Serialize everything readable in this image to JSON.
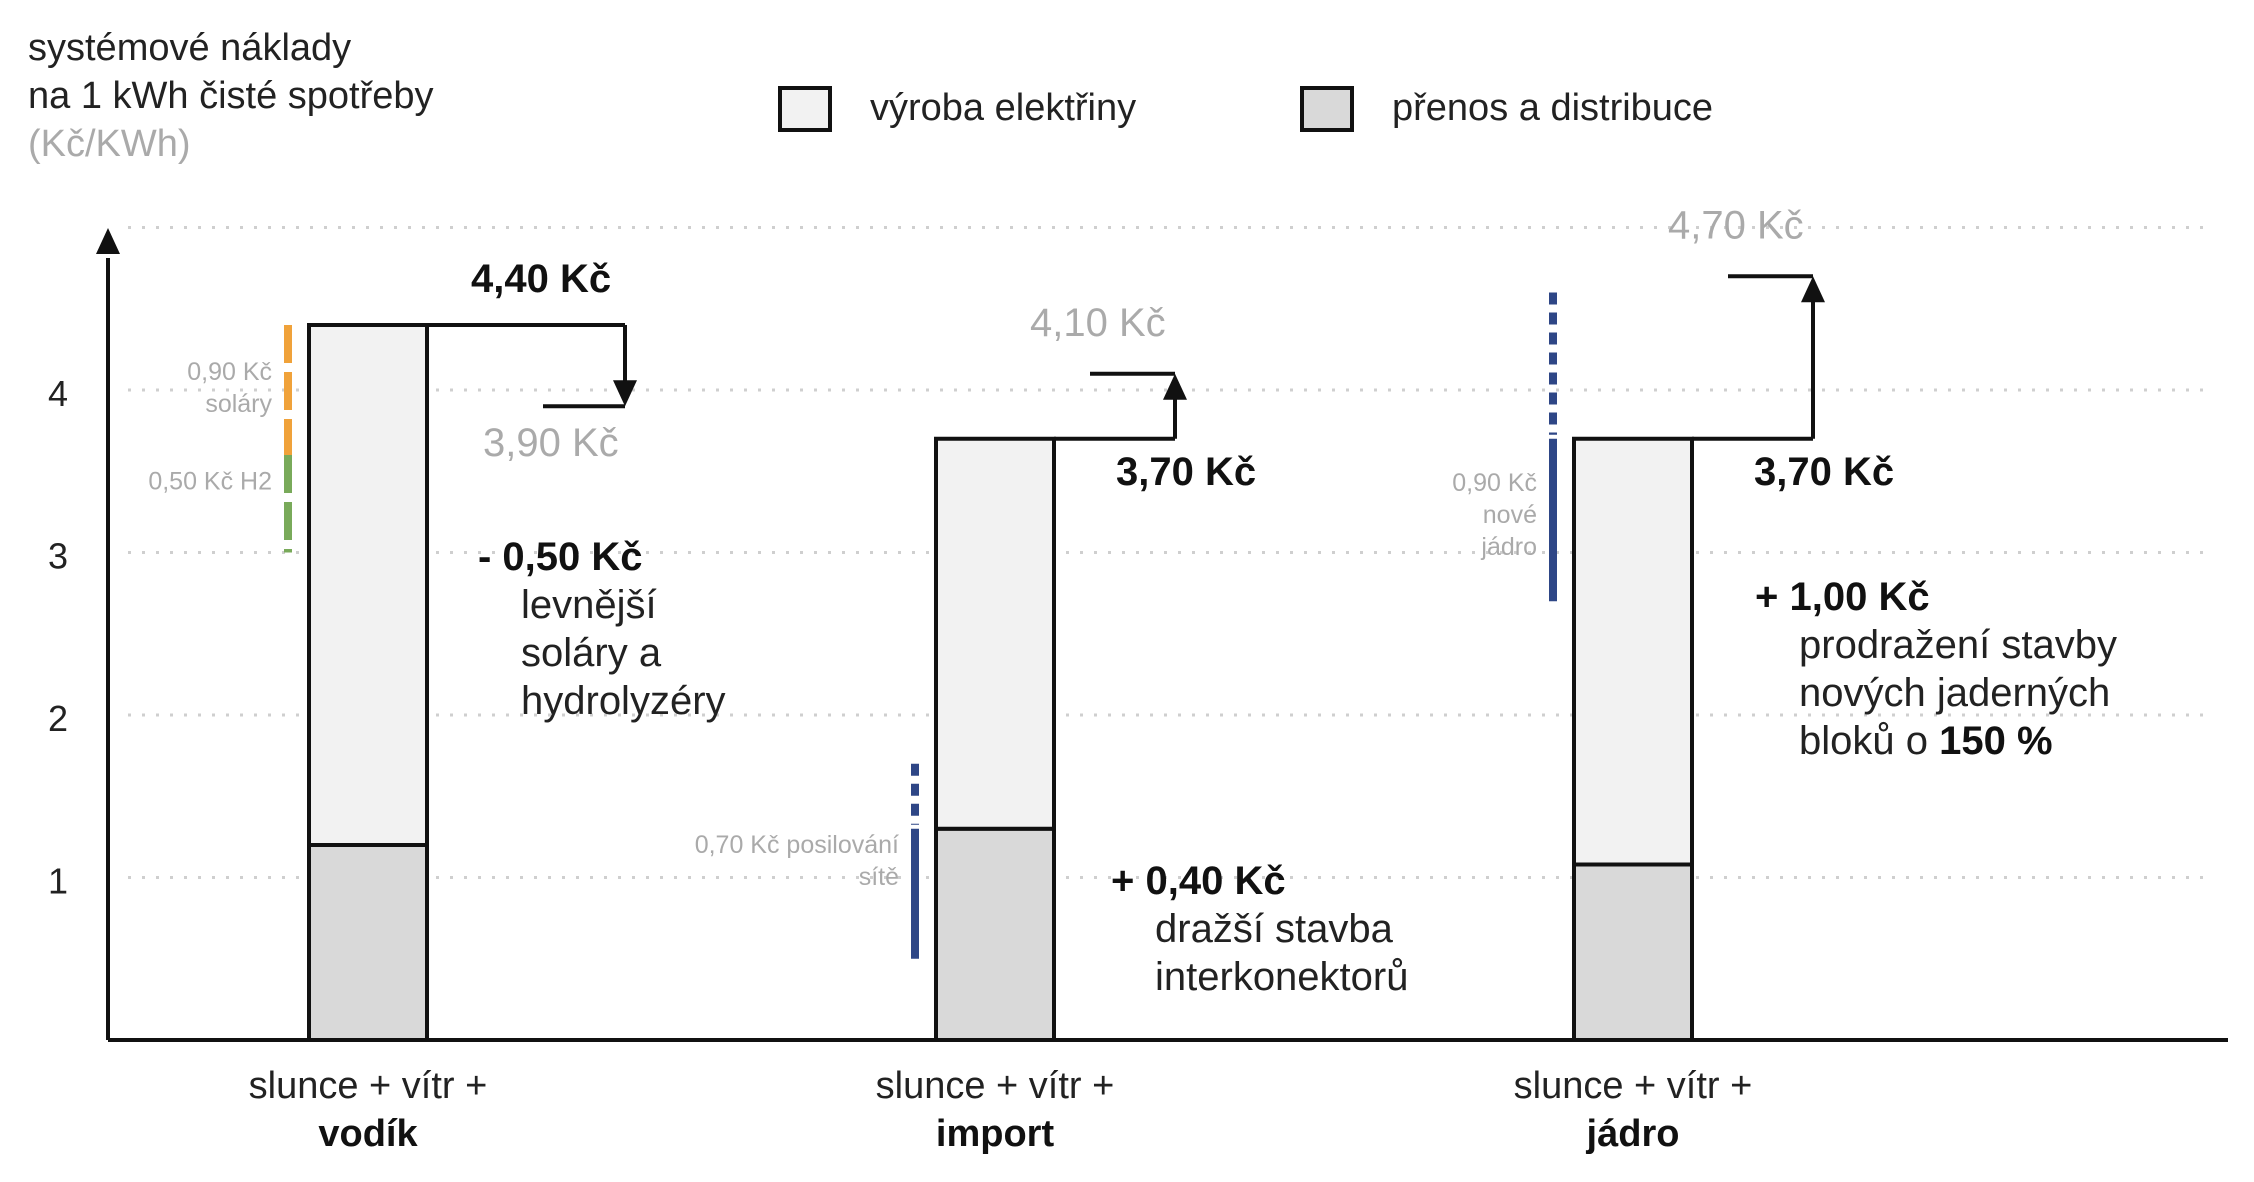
{
  "chart_data": {
    "type": "bar",
    "title_lines": [
      "systémové náklady",
      "na 1 kWh čisté spotřeby"
    ],
    "unit_label": "(Kč/KWh)",
    "ylim": [
      0,
      5
    ],
    "y_ticks": [
      {
        "value": 1,
        "label": "1"
      },
      {
        "value": 2,
        "label": "2"
      },
      {
        "value": 3,
        "label": "3"
      },
      {
        "value": 4,
        "label": "4"
      }
    ],
    "grid": true,
    "legend_position": "top",
    "legend": [
      {
        "name": "výroba elektřiny",
        "color": "#f2f2f2"
      },
      {
        "name": "přenos a distribuce",
        "color": "#d9d9d9"
      }
    ],
    "colors": {
      "orange": "#f0a23a",
      "green": "#79aa5a",
      "navy": "#2e4686",
      "muted": "#aaaaaa",
      "axis": "#111111"
    },
    "scenarios": [
      {
        "label_top": "slunce + vítr +",
        "label_bold": "vodík",
        "total": 4.4,
        "distribution": 1.2,
        "production": 3.2,
        "total_label": "4,40 Kč",
        "alt_value": 3.9,
        "alt_label": "3,90 Kč",
        "delta_label": "- 0,50 Kč",
        "delta_text": [
          "levnější",
          "soláry a",
          "hydrolyzéry"
        ],
        "components": [
          {
            "label_lines": [
              "0,90 Kč",
              "soláry"
            ],
            "from": 3.6,
            "to": 4.4,
            "color": "orange",
            "style": "dashed"
          },
          {
            "label_lines": [
              "0,50 Kč H2"
            ],
            "from": 3.0,
            "to": 3.6,
            "color": "green",
            "style": "dashed"
          }
        ]
      },
      {
        "label_top": "slunce + vítr +",
        "label_bold": "import",
        "total": 3.7,
        "distribution": 1.3,
        "production": 2.4,
        "total_label": "3,70 Kč",
        "alt_value": 4.1,
        "alt_label": "4,10 Kč",
        "delta_label": "+ 0,40 Kč",
        "delta_text": [
          "dražší stavba",
          "interkonektorů"
        ],
        "components": [
          {
            "label_lines": [
              "0,70 Kč posilování",
              "sítě"
            ],
            "from": 0.5,
            "to": 1.7,
            "color": "navy",
            "style": "mixed",
            "solid_to": 1.3
          }
        ]
      },
      {
        "label_top": "slunce + vítr +",
        "label_bold": "jádro",
        "total": 3.7,
        "distribution": 1.08,
        "production": 2.62,
        "total_label": "3,70 Kč",
        "alt_value": 4.7,
        "alt_label": "4,70 Kč",
        "delta_label": "+ 1,00 Kč",
        "delta_text": [
          "prodražení stavby",
          "nových jaderných",
          "bloků o "
        ],
        "delta_text_bold_tail": "150 %",
        "components": [
          {
            "label_lines": [
              "0,90 Kč",
              "nové",
              "jádro"
            ],
            "from": 2.7,
            "to": 4.6,
            "color": "navy",
            "style": "mixed",
            "solid_to": 3.7
          }
        ]
      }
    ]
  }
}
